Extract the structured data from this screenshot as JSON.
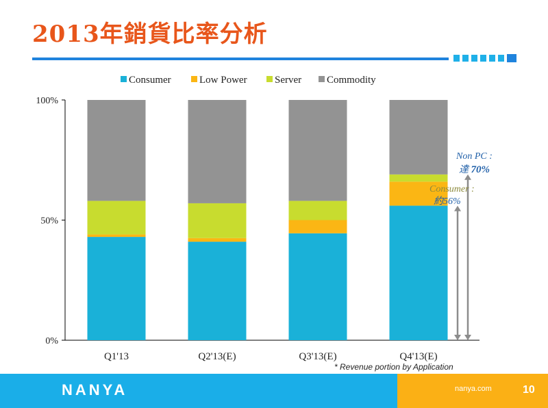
{
  "title": "2013年銷貨比率分析",
  "note": "* Revenue portion by Application",
  "footer": {
    "logo": "NANYA",
    "site": "nanya.com",
    "page": "10"
  },
  "annotations": {
    "nonpc_line1": "Non PC :",
    "nonpc_line2_prefix": "達 ",
    "nonpc_line2_value": "70%",
    "consumer_line1": "Consumer :",
    "consumer_line2": "約56%"
  },
  "colors": {
    "title": "#e8561b",
    "accent": "#1f83dd",
    "annotation": "#1f5fa8",
    "arrow": "#8c8c8c"
  },
  "chart_data": {
    "type": "bar",
    "stacked": true,
    "categories": [
      "Q1'13",
      "Q2'13(E)",
      "Q3'13(E)",
      "Q4'13(E)"
    ],
    "series": [
      {
        "name": "Consumer",
        "color": "#1ab1d8",
        "values": [
          43,
          41,
          44.5,
          56
        ]
      },
      {
        "name": "Low Power",
        "color": "#fbb614",
        "values": [
          1,
          1.5,
          5.5,
          10
        ]
      },
      {
        "name": "Server",
        "color": "#c8dc2f",
        "values": [
          14,
          14.5,
          8,
          3
        ]
      },
      {
        "name": "Commodity",
        "color": "#939393",
        "values": [
          42,
          43,
          42,
          31
        ]
      }
    ],
    "ylim": [
      0,
      100
    ],
    "ytick_labels": [
      "0%",
      "50%",
      "100%"
    ],
    "ytick_values": [
      0,
      50,
      100
    ],
    "legend": "top"
  }
}
